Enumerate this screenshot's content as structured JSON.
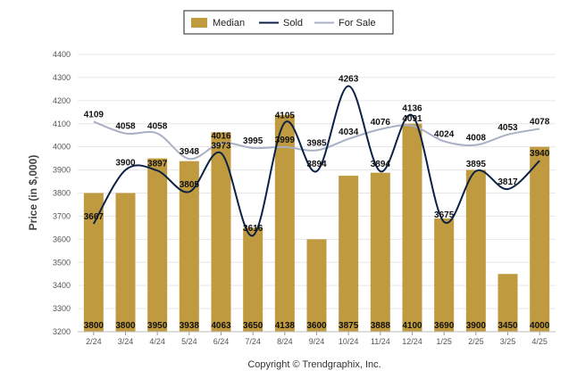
{
  "chart_data": {
    "type": "bar",
    "title": "",
    "xlabel": "",
    "ylabel": "Price (in $,000)",
    "ylim": [
      3200,
      4400
    ],
    "yticks": [
      3200,
      3300,
      3400,
      3500,
      3600,
      3700,
      3800,
      3900,
      4000,
      4100,
      4200,
      4300,
      4400
    ],
    "grid": true,
    "legend_position": "top-center",
    "categories": [
      "2/24",
      "3/24",
      "4/24",
      "5/24",
      "6/24",
      "7/24",
      "8/24",
      "9/24",
      "10/24",
      "11/24",
      "12/24",
      "1/25",
      "2/25",
      "3/25",
      "4/25"
    ],
    "series": [
      {
        "name": "Median",
        "type": "bar",
        "color": "#c09a3e",
        "values": [
          3800,
          3800,
          3950,
          3938,
          4063,
          3650,
          4138,
          3600,
          3875,
          3888,
          4100,
          3690,
          3900,
          3450,
          4000
        ]
      },
      {
        "name": "Sold",
        "type": "line",
        "color": "#0b2145",
        "values": [
          3667,
          3900,
          3897,
          3805,
          3973,
          3616,
          4105,
          3894,
          4263,
          3894,
          4136,
          3675,
          3895,
          3817,
          3940
        ]
      },
      {
        "name": "For Sale",
        "type": "line",
        "color": "#a9b0c3",
        "values": [
          4109,
          4058,
          4058,
          3948,
          4016,
          3995,
          3999,
          3985,
          4034,
          4076,
          4091,
          4024,
          4008,
          4053,
          4078
        ]
      }
    ],
    "credit": "Copyright © Trendgraphix, Inc."
  }
}
